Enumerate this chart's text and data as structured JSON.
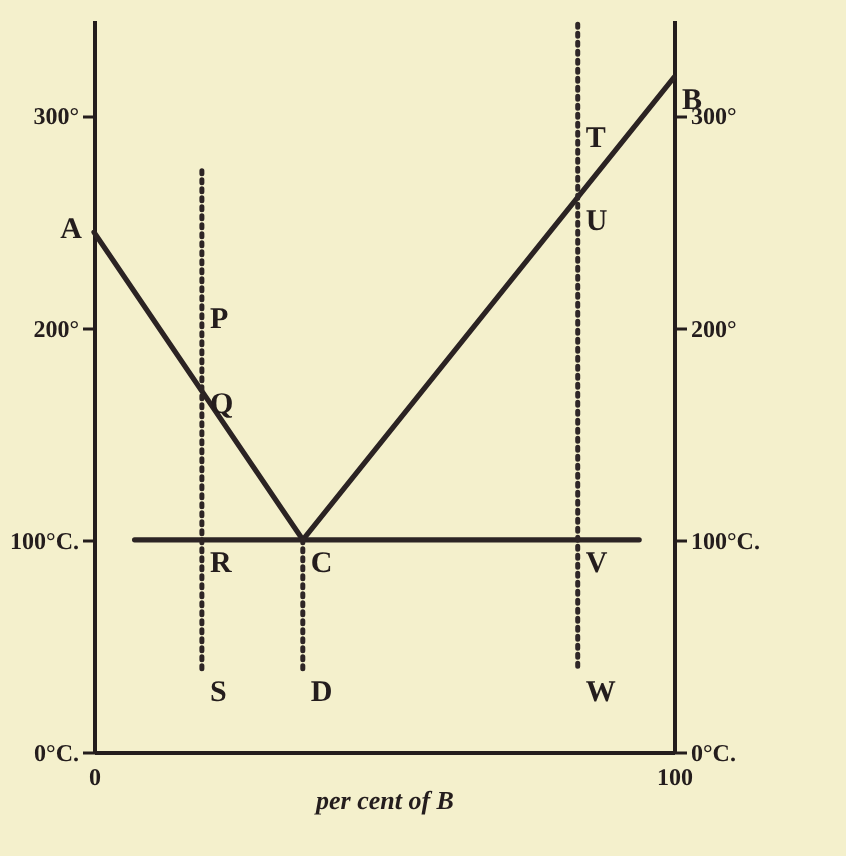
{
  "chart_data": {
    "type": "line",
    "xlabel": "per cent of B",
    "xlim": [
      0,
      100
    ],
    "xticks": [
      0,
      100
    ],
    "ylim": [
      0,
      345
    ],
    "yticks": [
      {
        "value": 0,
        "label": "0°C."
      },
      {
        "value": 100,
        "label": "100°C."
      },
      {
        "value": 200,
        "label": "200°"
      },
      {
        "value": 300,
        "label": "300°"
      }
    ],
    "y2lim": [
      0,
      345
    ],
    "y2ticks": [
      {
        "value": 0,
        "label": "0°C."
      },
      {
        "value": 100,
        "label": "100°C."
      },
      {
        "value": 200,
        "label": "200°"
      },
      {
        "value": 300,
        "label": "300°"
      }
    ],
    "series": [
      {
        "color": "#2b2323",
        "x": [
          0,
          36,
          100
        ],
        "values": [
          245,
          100,
          318
        ],
        "line_style": "solid"
      },
      {
        "color": "#2c2424",
        "x": [
          7,
          94
        ],
        "values": [
          100,
          100
        ],
        "line_style": "solid"
      },
      {
        "color": "#2d2525",
        "x": [
          18.6,
          18.6
        ],
        "values": [
          274,
          39
        ],
        "line_style": "dotted"
      },
      {
        "color": "#2e2626",
        "x": [
          36,
          36
        ],
        "values": [
          100,
          39
        ],
        "line_style": "dotted"
      },
      {
        "color": "#2f2727",
        "x": [
          83.4,
          83.4
        ],
        "values": [
          343,
          39
        ],
        "line_style": "dotted"
      }
    ],
    "annotations": [
      {
        "text": "A",
        "x": 0,
        "y": 245
      },
      {
        "text": "B",
        "x": 100,
        "y": 318
      },
      {
        "text": "C",
        "x": 36,
        "y": 100
      },
      {
        "text": "D",
        "x": 36,
        "y": 39
      },
      {
        "text": "P",
        "x": 18.6,
        "y": 215
      },
      {
        "text": "Q",
        "x": 18.6,
        "y": 175
      },
      {
        "text": "R",
        "x": 18.6,
        "y": 100
      },
      {
        "text": "S",
        "x": 18.6,
        "y": 39
      },
      {
        "text": "T",
        "x": 83.4,
        "y": 300
      },
      {
        "text": "U",
        "x": 83.4,
        "y": 261
      },
      {
        "text": "V",
        "x": 83.4,
        "y": 100
      },
      {
        "text": "W",
        "x": 83.4,
        "y": 39
      }
    ]
  }
}
